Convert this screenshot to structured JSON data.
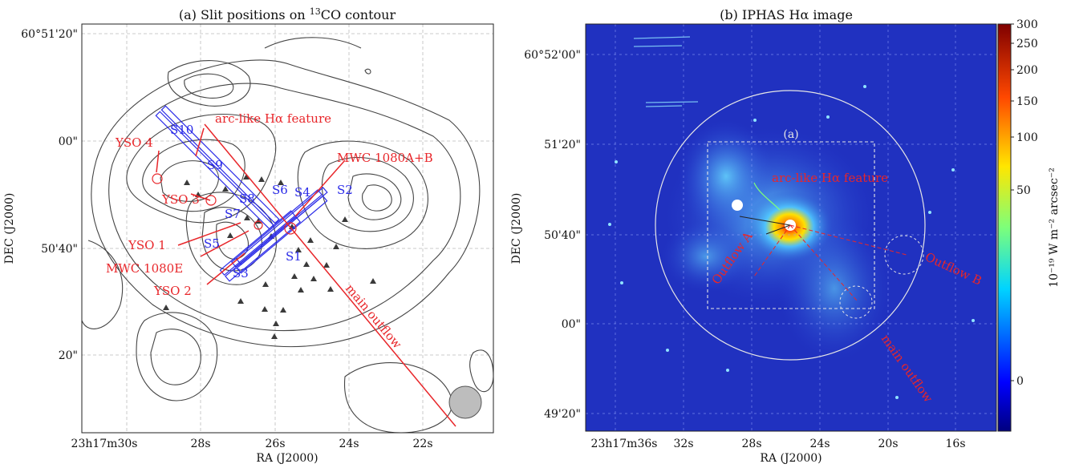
{
  "colors": {
    "slit": "#2b2be8",
    "outflow": "#e8262a",
    "contour": "#444444",
    "star": "#3a3a3a"
  },
  "chart_data": [
    {
      "panel": "a",
      "type": "scatter",
      "title_prefix": "(a) Slit positions on ",
      "title_sup": "13",
      "title_suffix": "CO contour",
      "xlabel": "RA (J2000)",
      "ylabel": "DEC (J2000)",
      "xticks": [
        "23h17m30s",
        "28s",
        "26s",
        "24s",
        "22s"
      ],
      "yticks": [
        "60°51'20\"",
        "00\"",
        "50'40\"",
        "20\""
      ],
      "grid": true,
      "yso_labels": [
        "YSO 4",
        "YSO 3",
        "YSO 1",
        "MWC 1080E",
        "YSO 2",
        "MWC 1080A+B"
      ],
      "feature_labels": [
        "arc-like Hα feature",
        "main outflow"
      ],
      "slit_labels": [
        "S10",
        "S9",
        "S8",
        "S7",
        "S6",
        "S5",
        "S4",
        "S3",
        "S2",
        "S1"
      ],
      "beam": "circle, lower-right"
    },
    {
      "panel": "b",
      "type": "heatmap",
      "title": "(b) IPHAS Hα image",
      "xlabel": "RA (J2000)",
      "ylabel": "DEC (J2000)",
      "xticks": [
        "23h17m36s",
        "32s",
        "28s",
        "24s",
        "20s",
        "16s"
      ],
      "yticks": [
        "60°52'00\"",
        "51'20\"",
        "50'40\"",
        "00\"",
        "49'20\""
      ],
      "annotations": [
        "(a)",
        "arc-like Hα feature",
        "Outflow A",
        "Outflow B",
        "main outflow"
      ],
      "colorbar": {
        "label": "10⁻¹⁹ W m⁻² arcsec⁻²",
        "ticks": [
          300,
          250,
          200,
          150,
          100,
          50,
          0
        ],
        "colormap": "jet"
      }
    }
  ]
}
